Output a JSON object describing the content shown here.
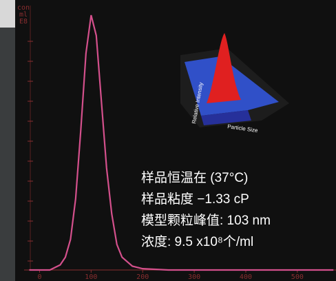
{
  "chart_data": {
    "type": "line",
    "y_label_lines": [
      "con",
      "ml",
      "E8"
    ],
    "x": [
      -20,
      0,
      20,
      40,
      50,
      60,
      70,
      80,
      90,
      100,
      110,
      120,
      130,
      140,
      150,
      160,
      180,
      200,
      250,
      300,
      400,
      500,
      570
    ],
    "series": [
      {
        "color": "#d4508c",
        "values": [
          0,
          0,
          0,
          0.02,
          0.05,
          0.12,
          0.28,
          0.55,
          0.85,
          1.0,
          0.92,
          0.66,
          0.4,
          0.22,
          0.1,
          0.05,
          0.015,
          0.005,
          0,
          0,
          0,
          0,
          0
        ]
      }
    ],
    "xlim": [
      -30,
      575
    ],
    "ylim": [
      0,
      1
    ],
    "xticks": [
      0,
      100,
      200,
      300,
      400,
      500
    ],
    "inset_labels": [
      "Particle Size",
      "Relative Intensity"
    ],
    "annotations": [
      "样品恒温在 (37°C)",
      "样品粘度  −1.33 cP",
      "模型颗粒峰值:  103 nm",
      "浓度: 9.5 x10⁸个/ml"
    ]
  }
}
